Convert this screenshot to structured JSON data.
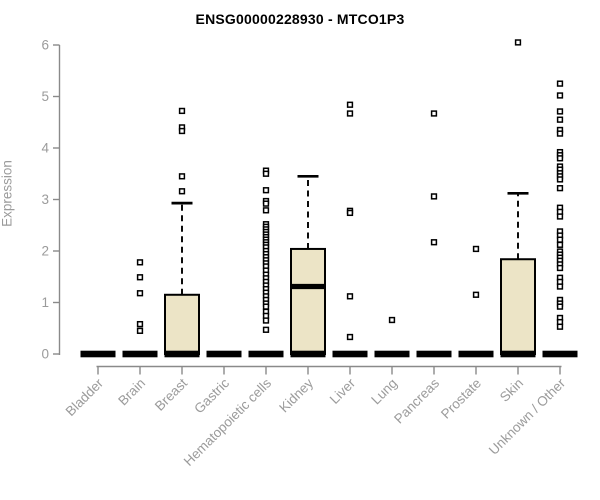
{
  "chart_data": {
    "type": "boxplot",
    "title": "ENSG00000228930 - MTCO1P3",
    "ylabel": "Expression",
    "xlabel": "",
    "ylim": [
      0,
      6
    ],
    "yticks": [
      0,
      1,
      2,
      3,
      4,
      5,
      6
    ],
    "grid": false,
    "legend": null,
    "colors": {
      "box_fill": "#ece4c6",
      "box_stroke": "#000000",
      "axis_line": "#8a8a8a",
      "axis_text": "#9b9b9b",
      "title_text": "#000000"
    },
    "categories": [
      "Bladder",
      "Brain",
      "Breast",
      "Gastric",
      "Hematopoietic cells",
      "Kidney",
      "Liver",
      "Lung",
      "Pancreas",
      "Prostate",
      "Skin",
      "Unknown / Other"
    ],
    "series": [
      {
        "category": "Bladder",
        "q1": 0,
        "median": 0,
        "q3": 0,
        "whisker_high": null,
        "outliers": []
      },
      {
        "category": "Brain",
        "q1": 0,
        "median": 0,
        "q3": 0,
        "whisker_high": null,
        "outliers": [
          1.78,
          1.49,
          1.18,
          0.58,
          0.45
        ]
      },
      {
        "category": "Breast",
        "q1": 0,
        "median": 0.02,
        "q3": 1.15,
        "whisker_high": 2.93,
        "outliers": [
          4.72,
          4.4,
          4.33,
          3.45,
          3.16
        ]
      },
      {
        "category": "Gastric",
        "q1": 0,
        "median": 0,
        "q3": 0,
        "whisker_high": null,
        "outliers": []
      },
      {
        "category": "Hematopoietic cells",
        "q1": 0,
        "median": 0,
        "q3": 0,
        "whisker_high": null,
        "outliers": [
          3.56,
          3.5,
          3.18,
          2.97,
          2.92,
          2.79,
          2.52,
          2.47,
          2.42,
          2.37,
          2.32,
          2.27,
          2.22,
          2.17,
          2.12,
          2.07,
          2.0,
          1.94,
          1.88,
          1.82,
          1.76,
          1.7,
          1.62,
          1.54,
          1.47,
          1.4,
          1.33,
          1.26,
          1.19,
          1.12,
          1.05,
          0.98,
          0.92,
          0.82,
          0.74,
          0.65,
          0.47
        ]
      },
      {
        "category": "Kidney",
        "q1": 0,
        "median": 1.31,
        "q3": 2.04,
        "whisker_high": 3.45,
        "outliers": []
      },
      {
        "category": "Liver",
        "q1": 0,
        "median": 0,
        "q3": 0,
        "whisker_high": null,
        "outliers": [
          4.84,
          4.67,
          2.78,
          2.74,
          1.12,
          0.33
        ]
      },
      {
        "category": "Lung",
        "q1": 0,
        "median": 0,
        "q3": 0,
        "whisker_high": null,
        "outliers": [
          0.66
        ]
      },
      {
        "category": "Pancreas",
        "q1": 0,
        "median": 0,
        "q3": 0,
        "whisker_high": null,
        "outliers": [
          4.67,
          3.06,
          2.17
        ]
      },
      {
        "category": "Prostate",
        "q1": 0,
        "median": 0,
        "q3": 0,
        "whisker_high": null,
        "outliers": [
          2.04,
          1.15
        ]
      },
      {
        "category": "Skin",
        "q1": 0,
        "median": 0.02,
        "q3": 1.84,
        "whisker_high": 3.12,
        "outliers": [
          6.05
        ]
      },
      {
        "category": "Unknown / Other",
        "q1": 0,
        "median": 0,
        "q3": 0,
        "whisker_high": null,
        "outliers": [
          5.25,
          5.02,
          4.71,
          4.55,
          4.35,
          4.28,
          3.92,
          3.86,
          3.8,
          3.64,
          3.58,
          3.51,
          3.45,
          3.39,
          3.22,
          2.84,
          2.76,
          2.67,
          2.38,
          2.3,
          2.22,
          2.12,
          1.99,
          1.93,
          1.87,
          1.81,
          1.74,
          1.67,
          1.48,
          1.4,
          1.31,
          1.05,
          0.98,
          0.92,
          0.7,
          0.62,
          0.53
        ]
      }
    ]
  }
}
